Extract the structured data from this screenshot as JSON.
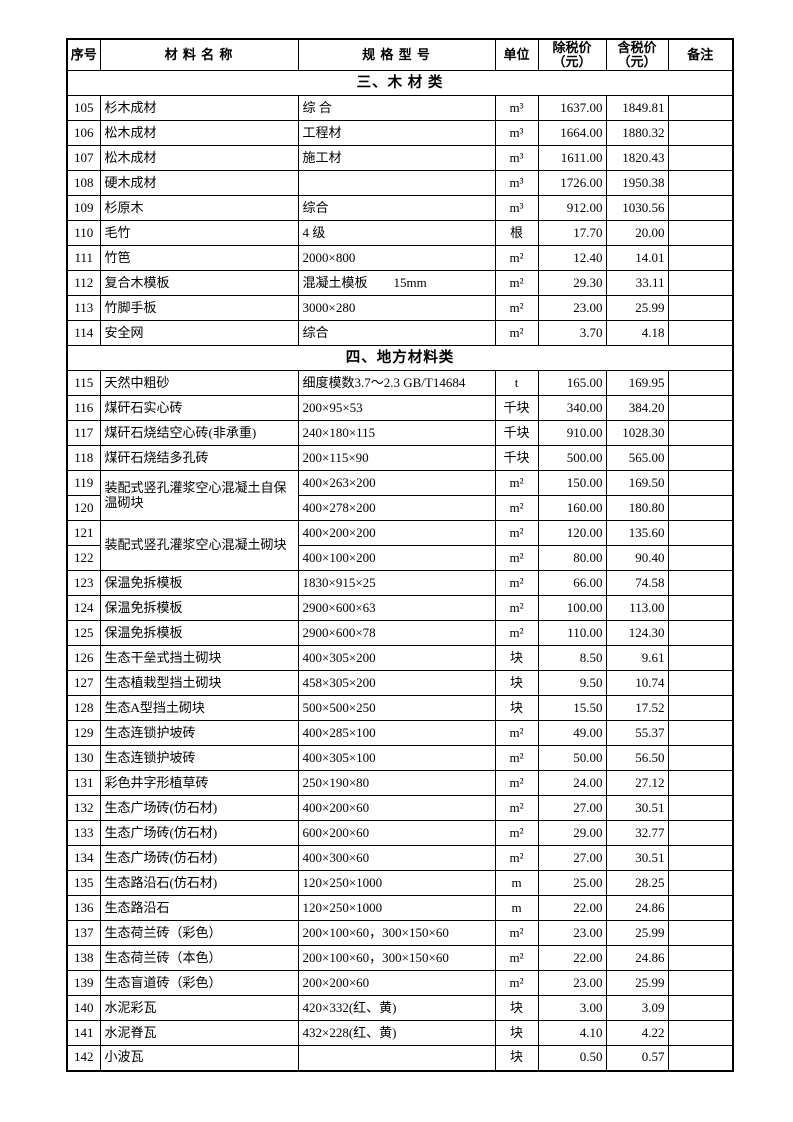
{
  "table": {
    "headers": {
      "no": "序号",
      "name": "材 料 名 称",
      "spec": "规 格 型 号",
      "unit": "单位",
      "ex_line1": "除税价",
      "ex_line2": "（元）",
      "inc_line1": "含税价",
      "inc_line2": "（元）",
      "note": "备注"
    },
    "sections": [
      {
        "title": "三、木 材 类",
        "rows": [
          {
            "no": "105",
            "name": "杉木成材",
            "spec": "综 合",
            "unit": "m³",
            "ex": "1637.00",
            "inc": "1849.81",
            "note": ""
          },
          {
            "no": "106",
            "name": "松木成材",
            "spec": "工程材",
            "unit": "m³",
            "ex": "1664.00",
            "inc": "1880.32",
            "note": ""
          },
          {
            "no": "107",
            "name": "松木成材",
            "spec": "施工材",
            "unit": "m³",
            "ex": "1611.00",
            "inc": "1820.43",
            "note": ""
          },
          {
            "no": "108",
            "name": "硬木成材",
            "spec": "",
            "unit": "m³",
            "ex": "1726.00",
            "inc": "1950.38",
            "note": ""
          },
          {
            "no": "109",
            "name": "杉原木",
            "spec": "综合",
            "unit": "m³",
            "ex": "912.00",
            "inc": "1030.56",
            "note": ""
          },
          {
            "no": "110",
            "name": "毛竹",
            "spec": "4 级",
            "unit": "根",
            "ex": "17.70",
            "inc": "20.00",
            "note": ""
          },
          {
            "no": "111",
            "name": "竹笆",
            "spec": "2000×800",
            "unit": "m²",
            "ex": "12.40",
            "inc": "14.01",
            "note": ""
          },
          {
            "no": "112",
            "name": "复合木模板",
            "spec": "混凝土模板　　15mm",
            "unit": "m²",
            "ex": "29.30",
            "inc": "33.11",
            "note": ""
          },
          {
            "no": "113",
            "name": "竹脚手板",
            "spec": "3000×280",
            "unit": "m²",
            "ex": "23.00",
            "inc": "25.99",
            "note": ""
          },
          {
            "no": "114",
            "name": "安全网",
            "spec": "综合",
            "unit": "m²",
            "ex": "3.70",
            "inc": "4.18",
            "note": ""
          }
        ]
      },
      {
        "title": "四、地方材料类",
        "rows": [
          {
            "no": "115",
            "name": "天然中粗砂",
            "spec": "细度模数3.7～2.3 GB/T14684",
            "unit": "t",
            "ex": "165.00",
            "inc": "169.95",
            "note": ""
          },
          {
            "no": "116",
            "name": "煤矸石实心砖",
            "spec": "200×95×53",
            "unit": "千块",
            "ex": "340.00",
            "inc": "384.20",
            "note": ""
          },
          {
            "no": "117",
            "name": "煤矸石烧结空心砖(非承重)",
            "spec": "240×180×115",
            "unit": "千块",
            "ex": "910.00",
            "inc": "1028.30",
            "note": ""
          },
          {
            "no": "118",
            "name": "煤矸石烧结多孔砖",
            "spec": "200×115×90",
            "unit": "千块",
            "ex": "500.00",
            "inc": "565.00",
            "note": ""
          },
          {
            "no": "119",
            "name": "装配式竖孔灌浆空心混凝土自保温砌块",
            "name_rowspan": 2,
            "spec": "400×263×200",
            "unit": "m²",
            "ex": "150.00",
            "inc": "169.50",
            "note": ""
          },
          {
            "no": "120",
            "merged_name": true,
            "spec": "400×278×200",
            "unit": "m²",
            "ex": "160.00",
            "inc": "180.80",
            "note": ""
          },
          {
            "no": "121",
            "name": "装配式竖孔灌浆空心混凝土砌块",
            "name_rowspan": 2,
            "spec": "400×200×200",
            "unit": "m²",
            "ex": "120.00",
            "inc": "135.60",
            "note": ""
          },
          {
            "no": "122",
            "merged_name": true,
            "spec": "400×100×200",
            "unit": "m²",
            "ex": "80.00",
            "inc": "90.40",
            "note": ""
          },
          {
            "no": "123",
            "name": "保温免拆模板",
            "spec": "1830×915×25",
            "unit": "m²",
            "ex": "66.00",
            "inc": "74.58",
            "note": ""
          },
          {
            "no": "124",
            "name": "保温免拆模板",
            "spec": "2900×600×63",
            "unit": "m²",
            "ex": "100.00",
            "inc": "113.00",
            "note": ""
          },
          {
            "no": "125",
            "name": "保温免拆模板",
            "spec": "2900×600×78",
            "unit": "m²",
            "ex": "110.00",
            "inc": "124.30",
            "note": ""
          },
          {
            "no": "126",
            "name": "生态干垒式挡土砌块",
            "spec": "400×305×200",
            "unit": "块",
            "ex": "8.50",
            "inc": "9.61",
            "note": ""
          },
          {
            "no": "127",
            "name": "生态植栽型挡土砌块",
            "spec": "458×305×200",
            "unit": "块",
            "ex": "9.50",
            "inc": "10.74",
            "note": ""
          },
          {
            "no": "128",
            "name": "生态A型挡土砌块",
            "spec": "500×500×250",
            "unit": "块",
            "ex": "15.50",
            "inc": "17.52",
            "note": ""
          },
          {
            "no": "129",
            "name": "生态连锁护坡砖",
            "spec": "400×285×100",
            "unit": "m²",
            "ex": "49.00",
            "inc": "55.37",
            "note": ""
          },
          {
            "no": "130",
            "name": "生态连锁护坡砖",
            "spec": "400×305×100",
            "unit": "m²",
            "ex": "50.00",
            "inc": "56.50",
            "note": ""
          },
          {
            "no": "131",
            "name": "彩色井字形植草砖",
            "spec": "250×190×80",
            "unit": "m²",
            "ex": "24.00",
            "inc": "27.12",
            "note": ""
          },
          {
            "no": "132",
            "name": "生态广场砖(仿石材)",
            "spec": "400×200×60",
            "unit": "m²",
            "ex": "27.00",
            "inc": "30.51",
            "note": ""
          },
          {
            "no": "133",
            "name": "生态广场砖(仿石材)",
            "spec": "600×200×60",
            "unit": "m²",
            "ex": "29.00",
            "inc": "32.77",
            "note": ""
          },
          {
            "no": "134",
            "name": "生态广场砖(仿石材)",
            "spec": "400×300×60",
            "unit": "m²",
            "ex": "27.00",
            "inc": "30.51",
            "note": ""
          },
          {
            "no": "135",
            "name": "生态路沿石(仿石材)",
            "spec": "120×250×1000",
            "unit": "m",
            "ex": "25.00",
            "inc": "28.25",
            "note": ""
          },
          {
            "no": "136",
            "name": "生态路沿石",
            "spec": "120×250×1000",
            "unit": "m",
            "ex": "22.00",
            "inc": "24.86",
            "note": ""
          },
          {
            "no": "137",
            "name": "生态荷兰砖（彩色）",
            "spec": "200×100×60，300×150×60",
            "unit": "m²",
            "ex": "23.00",
            "inc": "25.99",
            "note": ""
          },
          {
            "no": "138",
            "name": "生态荷兰砖（本色）",
            "spec": "200×100×60，300×150×60",
            "unit": "m²",
            "ex": "22.00",
            "inc": "24.86",
            "note": ""
          },
          {
            "no": "139",
            "name": "生态盲道砖（彩色）",
            "spec": "200×200×60",
            "unit": "m²",
            "ex": "23.00",
            "inc": "25.99",
            "note": ""
          },
          {
            "no": "140",
            "name": "水泥彩瓦",
            "spec": "420×332(红、黄)",
            "unit": "块",
            "ex": "3.00",
            "inc": "3.09",
            "note": ""
          },
          {
            "no": "141",
            "name": "水泥脊瓦",
            "spec": "432×228(红、黄)",
            "unit": "块",
            "ex": "4.10",
            "inc": "4.22",
            "note": ""
          },
          {
            "no": "142",
            "name": "小波瓦",
            "spec": "",
            "unit": "块",
            "ex": "0.50",
            "inc": "0.57",
            "note": ""
          }
        ]
      }
    ]
  }
}
